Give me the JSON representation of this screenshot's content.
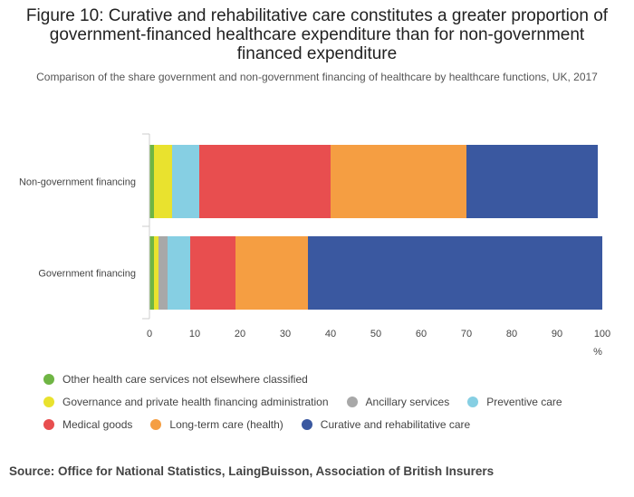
{
  "title": "Figure 10: Curative and rehabilitative care constitutes a greater proportion of government-financed healthcare expenditure than for non-government financed expenditure",
  "subtitle": "Comparison of the share government and non-government financing of healthcare by healthcare functions, UK, 2017",
  "source": "Source: Office for National Statistics, LaingBuisson, Association of British Insurers",
  "chart_data": {
    "type": "bar",
    "orientation": "horizontal",
    "stacked": true,
    "categories": [
      "Non-government financing",
      "Government financing"
    ],
    "xlabel": "%",
    "xlim": [
      0,
      100
    ],
    "xticks": [
      "0",
      "10",
      "20",
      "30",
      "40",
      "50",
      "60",
      "70",
      "80",
      "90",
      "100"
    ],
    "grid": false,
    "legend_position": "bottom",
    "series": [
      {
        "name": "Other health care services not elsewhere classified",
        "color": "#6fb544",
        "values": [
          1,
          1
        ]
      },
      {
        "name": "Governance and private health financing administration",
        "color": "#e9e22e",
        "values": [
          4,
          1
        ]
      },
      {
        "name": "Ancillary services",
        "color": "#a8a8a8",
        "values": [
          0,
          2
        ]
      },
      {
        "name": "Preventive care",
        "color": "#86cfe3",
        "values": [
          6,
          5
        ]
      },
      {
        "name": "Medical goods",
        "color": "#e84e4f",
        "values": [
          29,
          10
        ]
      },
      {
        "name": "Long-term care (health)",
        "color": "#f59e42",
        "values": [
          30,
          16
        ]
      },
      {
        "name": "Curative and rehabilitative care",
        "color": "#3a58a0",
        "values": [
          29,
          65
        ]
      }
    ]
  }
}
